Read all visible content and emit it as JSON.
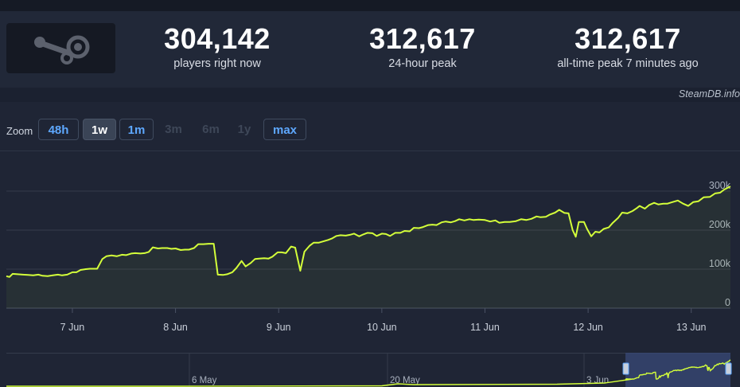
{
  "stats": [
    {
      "value": "304,142",
      "label": "players right now"
    },
    {
      "value": "312,617",
      "label": "24-hour peak"
    },
    {
      "value": "312,617",
      "label": "all-time peak 7 minutes ago"
    }
  ],
  "logo_icon": "steam-logo-icon",
  "credit": "SteamDB.info",
  "zoom": {
    "label": "Zoom",
    "buttons": [
      {
        "label": "48h",
        "state": "enabled"
      },
      {
        "label": "1w",
        "state": "selected"
      },
      {
        "label": "1m",
        "state": "enabled"
      },
      {
        "label": "3m",
        "state": "disabled"
      },
      {
        "label": "6m",
        "state": "disabled"
      },
      {
        "label": "1y",
        "state": "disabled"
      },
      {
        "label": "max",
        "state": "enabled"
      }
    ]
  },
  "colors": {
    "line": "#d4ff3a",
    "accent": "#5ea8ff",
    "navigator_mask": "#3a4a78"
  },
  "chart_data": {
    "type": "line",
    "x_unit": "days",
    "x_ticks": [
      {
        "label": "7 Jun",
        "day": 7
      },
      {
        "label": "8 Jun",
        "day": 8
      },
      {
        "label": "9 Jun",
        "day": 9
      },
      {
        "label": "10 Jun",
        "day": 10
      },
      {
        "label": "11 Jun",
        "day": 11
      },
      {
        "label": "12 Jun",
        "day": 12
      },
      {
        "label": "13 Jun",
        "day": 13
      }
    ],
    "y_ticks": [
      {
        "label": "0",
        "value": 0
      },
      {
        "label": "100k",
        "value": 100000
      },
      {
        "label": "200k",
        "value": 200000
      },
      {
        "label": "300k",
        "value": 300000
      }
    ],
    "xlim": [
      6.36,
      13.38
    ],
    "ylim": [
      0,
      300000
    ],
    "grid": true,
    "series": [
      {
        "points": [
          [
            6.36,
            82000
          ],
          [
            6.39,
            80000
          ],
          [
            6.42,
            88000
          ],
          [
            6.47,
            87000
          ],
          [
            6.52,
            86000
          ],
          [
            6.57,
            85000
          ],
          [
            6.62,
            84000
          ],
          [
            6.67,
            86000
          ],
          [
            6.71,
            83000
          ],
          [
            6.76,
            82000
          ],
          [
            6.81,
            84000
          ],
          [
            6.86,
            86000
          ],
          [
            6.9,
            84000
          ],
          [
            6.95,
            86000
          ],
          [
            7.0,
            92000
          ],
          [
            7.04,
            92000
          ],
          [
            7.08,
            98000
          ],
          [
            7.13,
            100000
          ],
          [
            7.17,
            101000
          ],
          [
            7.24,
            101000
          ],
          [
            7.29,
            126000
          ],
          [
            7.33,
            133000
          ],
          [
            7.38,
            135000
          ],
          [
            7.43,
            133000
          ],
          [
            7.48,
            137000
          ],
          [
            7.52,
            136000
          ],
          [
            7.57,
            140000
          ],
          [
            7.61,
            141000
          ],
          [
            7.66,
            140000
          ],
          [
            7.7,
            141000
          ],
          [
            7.74,
            144000
          ],
          [
            7.78,
            156000
          ],
          [
            7.83,
            153000
          ],
          [
            7.87,
            154000
          ],
          [
            7.92,
            154000
          ],
          [
            7.96,
            152000
          ],
          [
            8.0,
            153000
          ],
          [
            8.05,
            149000
          ],
          [
            8.09,
            150000
          ],
          [
            8.13,
            150000
          ],
          [
            8.18,
            154000
          ],
          [
            8.22,
            164000
          ],
          [
            8.27,
            164000
          ],
          [
            8.32,
            165000
          ],
          [
            8.37,
            165000
          ],
          [
            8.41,
            86000
          ],
          [
            8.46,
            85000
          ],
          [
            8.5,
            87000
          ],
          [
            8.55,
            92000
          ],
          [
            8.59,
            103000
          ],
          [
            8.64,
            121000
          ],
          [
            8.68,
            107000
          ],
          [
            8.73,
            116000
          ],
          [
            8.77,
            126000
          ],
          [
            8.81,
            127000
          ],
          [
            8.86,
            128000
          ],
          [
            8.9,
            127000
          ],
          [
            8.94,
            132000
          ],
          [
            8.99,
            143000
          ],
          [
            9.03,
            143000
          ],
          [
            9.07,
            141000
          ],
          [
            9.12,
            158000
          ],
          [
            9.16,
            155000
          ],
          [
            9.21,
            96000
          ],
          [
            9.25,
            145000
          ],
          [
            9.3,
            160000
          ],
          [
            9.34,
            168000
          ],
          [
            9.39,
            168000
          ],
          [
            9.43,
            171000
          ],
          [
            9.48,
            175000
          ],
          [
            9.52,
            179000
          ],
          [
            9.56,
            185000
          ],
          [
            9.6,
            187000
          ],
          [
            9.65,
            186000
          ],
          [
            9.69,
            188000
          ],
          [
            9.73,
            191000
          ],
          [
            9.78,
            184000
          ],
          [
            9.82,
            189000
          ],
          [
            9.86,
            193000
          ],
          [
            9.91,
            192000
          ],
          [
            9.95,
            185000
          ],
          [
            10.0,
            191000
          ],
          [
            10.04,
            190000
          ],
          [
            10.08,
            185000
          ],
          [
            10.13,
            193000
          ],
          [
            10.18,
            193000
          ],
          [
            10.22,
            198000
          ],
          [
            10.27,
            197000
          ],
          [
            10.31,
            206000
          ],
          [
            10.36,
            205000
          ],
          [
            10.4,
            208000
          ],
          [
            10.45,
            213000
          ],
          [
            10.49,
            214000
          ],
          [
            10.53,
            213000
          ],
          [
            10.58,
            220000
          ],
          [
            10.62,
            222000
          ],
          [
            10.67,
            220000
          ],
          [
            10.71,
            223000
          ],
          [
            10.75,
            228000
          ],
          [
            10.8,
            225000
          ],
          [
            10.85,
            228000
          ],
          [
            10.89,
            226000
          ],
          [
            10.94,
            227000
          ],
          [
            11.0,
            226000
          ],
          [
            11.05,
            222000
          ],
          [
            11.1,
            225000
          ],
          [
            11.14,
            219000
          ],
          [
            11.19,
            221000
          ],
          [
            11.24,
            221000
          ],
          [
            11.3,
            223000
          ],
          [
            11.35,
            228000
          ],
          [
            11.4,
            226000
          ],
          [
            11.45,
            229000
          ],
          [
            11.5,
            235000
          ],
          [
            11.54,
            233000
          ],
          [
            11.59,
            234000
          ],
          [
            11.63,
            240000
          ],
          [
            11.68,
            245000
          ],
          [
            11.72,
            252000
          ],
          [
            11.77,
            244000
          ],
          [
            11.81,
            243000
          ],
          [
            11.85,
            200000
          ],
          [
            11.88,
            183000
          ],
          [
            11.91,
            221000
          ],
          [
            11.96,
            221000
          ],
          [
            11.99,
            203000
          ],
          [
            12.03,
            184000
          ],
          [
            12.07,
            196000
          ],
          [
            12.11,
            194000
          ],
          [
            12.15,
            203000
          ],
          [
            12.2,
            207000
          ],
          [
            12.24,
            219000
          ],
          [
            12.29,
            231000
          ],
          [
            12.33,
            245000
          ],
          [
            12.38,
            243000
          ],
          [
            12.43,
            249000
          ],
          [
            12.47,
            256000
          ],
          [
            12.5,
            262000
          ],
          [
            12.55,
            255000
          ],
          [
            12.59,
            264000
          ],
          [
            12.64,
            270000
          ],
          [
            12.68,
            266000
          ],
          [
            12.73,
            268000
          ],
          [
            12.77,
            268000
          ],
          [
            12.82,
            272000
          ],
          [
            12.87,
            276000
          ],
          [
            12.92,
            268000
          ],
          [
            12.97,
            262000
          ],
          [
            13.02,
            272000
          ],
          [
            13.07,
            274000
          ],
          [
            13.12,
            284000
          ],
          [
            13.18,
            285000
          ],
          [
            13.23,
            294000
          ],
          [
            13.28,
            296000
          ],
          [
            13.32,
            304000
          ],
          [
            13.38,
            312000
          ]
        ]
      }
    ],
    "navigator": {
      "x_ticks": [
        {
          "label": "6 May"
        },
        {
          "label": "20 May"
        },
        {
          "label": "3 Jun"
        }
      ],
      "window": {
        "start_fraction": 0.855,
        "end_fraction": 1.0
      }
    }
  }
}
